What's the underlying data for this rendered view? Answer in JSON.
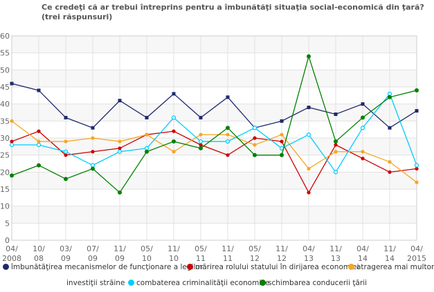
{
  "chart_data": {
    "type": "line",
    "title": "Ce credeţi că ar trebui întreprins pentru a îmbunătăţi situaţia social-economică din ţară?",
    "subtitle": "(trei răspunsuri)",
    "categories": [
      "04/2008",
      "10/08",
      "03/09",
      "07/09",
      "11/09",
      "05/10",
      "11/10",
      "05/11",
      "11/11",
      "05/12",
      "11/12",
      "04/13",
      "11/13",
      "04/14",
      "11/14",
      "04/2015"
    ],
    "ylim": [
      0,
      60
    ],
    "yticks": [
      0,
      5,
      10,
      15,
      20,
      25,
      30,
      35,
      40,
      45,
      50,
      55,
      60
    ],
    "grid": true,
    "legend": "bottom",
    "series": [
      {
        "name": "îmbunătăţirea mecanismelor de funcţionare a legilor",
        "color": "#1f2a6b",
        "values": [
          46,
          44,
          36,
          33,
          41,
          36,
          43,
          36,
          42,
          33,
          35,
          39,
          37,
          40,
          33,
          38
        ]
      },
      {
        "name": "mărirea rolului statului în dirijarea economiei",
        "color": "#cc0000",
        "values": [
          29,
          32,
          25,
          26,
          27,
          31,
          32,
          28,
          25,
          30,
          29,
          14,
          28,
          24,
          20,
          21
        ]
      },
      {
        "name": "atragerea mai multor investiţii străine",
        "color": "#f5a623",
        "values": [
          35,
          29,
          29,
          30,
          29,
          31,
          26,
          31,
          31,
          28,
          31,
          21,
          26,
          26,
          23,
          17
        ]
      },
      {
        "name": "combaterea criminalităţii economice",
        "color": "#00ccff",
        "values": [
          28,
          28,
          26,
          22,
          26,
          27,
          36,
          29,
          29,
          33,
          27,
          31,
          20,
          33,
          43,
          22
        ]
      },
      {
        "name": "schimbarea conducerii ţării",
        "color": "#008000",
        "values": [
          19,
          22,
          18,
          21,
          14,
          26,
          29,
          27,
          33,
          25,
          25,
          54,
          29,
          36,
          42,
          44
        ]
      }
    ]
  },
  "legend_text": [
    "îmbunătăţirea mecanismelor de funcţionare a legilor",
    "mărirea rolului statului în dirijarea economiei",
    "atragerea mai multor",
    "investiţii străine",
    "combaterea criminalităţii economice",
    "schimbarea conducerii ţării"
  ]
}
